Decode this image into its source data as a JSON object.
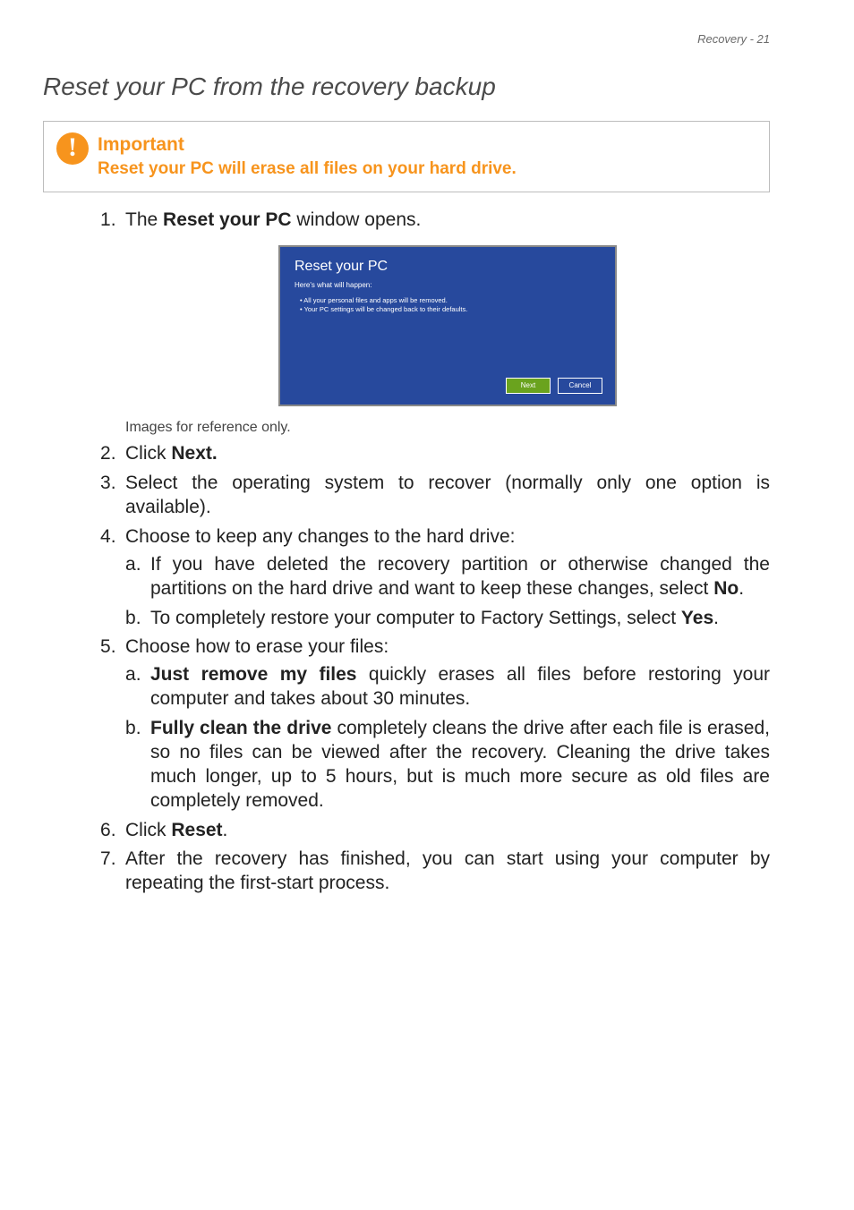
{
  "header": {
    "text": "Recovery - 21"
  },
  "section_title": "Reset your PC from the recovery backup",
  "callout": {
    "title": "Important",
    "text": "Reset your PC will erase all files on your hard drive.",
    "icon_glyph": "!",
    "title_color": "#f7941d",
    "text_color": "#f7941d",
    "icon_bg": "#f7941d"
  },
  "dialog": {
    "title": "Reset your PC",
    "subtitle": "Here's what will happen:",
    "bullets": [
      "All your personal files and apps will be removed.",
      "Your PC settings will be changed back to their defaults."
    ],
    "buttons": {
      "next": "Next",
      "cancel": "Cancel"
    },
    "bg_color": "#27499d",
    "next_bg": "#6aa31e"
  },
  "note": "Images for reference only.",
  "steps": {
    "s1_a": "The ",
    "s1_b": "Reset your PC",
    "s1_c": " window opens.",
    "s2_a": "Click ",
    "s2_b": "Next.",
    "s3": "Select the operating system to recover (normally only one option is available).",
    "s4": "Choose to keep any changes to the hard drive:",
    "s4a_a": "If you have deleted the recovery partition or otherwise changed the partitions on the hard drive and want to keep these changes, select ",
    "s4a_b": "No",
    "s4a_c": ".",
    "s4b_a": "To completely restore your computer to Factory Settings, select ",
    "s4b_b": "Yes",
    "s4b_c": ".",
    "s5": "Choose how to erase your files:",
    "s5a_b": "Just remove my files",
    "s5a_c": " quickly erases all files before restoring your computer and takes about 30 minutes.",
    "s5b_b": "Fully clean the drive",
    "s5b_c": " completely cleans the drive after each file is erased, so no files can be viewed after the recovery. Cleaning the drive takes much longer, up to 5 hours, but is much more secure as old files are completely removed.",
    "s6_a": "Click ",
    "s6_b": "Reset",
    "s6_c": ".",
    "s7": "After the recovery has finished, you can start using your computer by repeating the first-start process."
  }
}
